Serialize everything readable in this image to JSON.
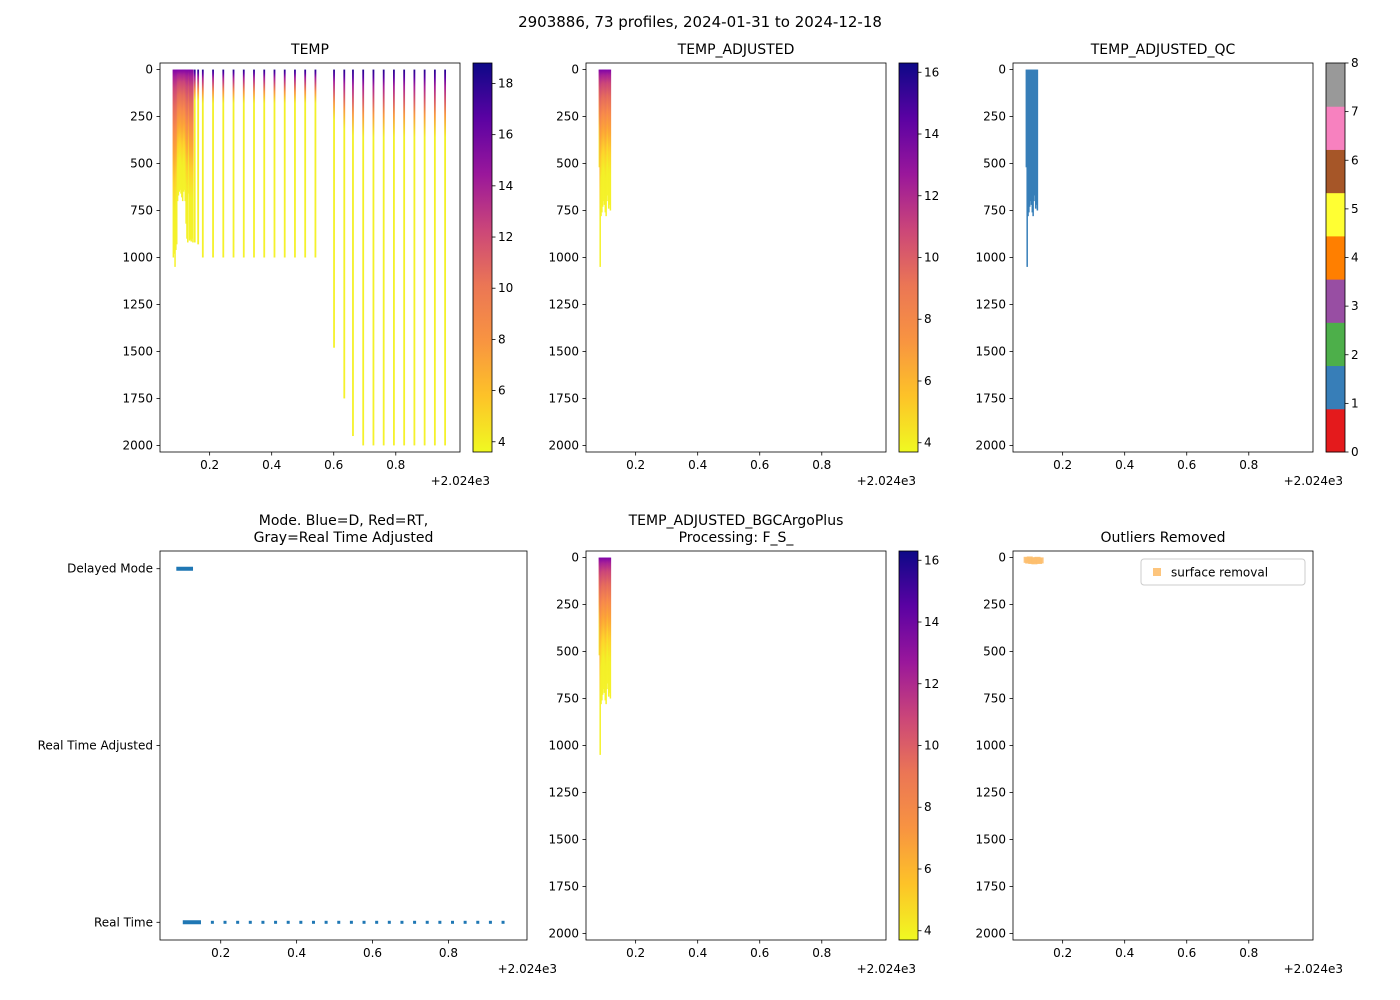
{
  "figure": {
    "suptitle": "2903886, 73 profiles, 2024-01-31 to 2024-12-18",
    "background": "#ffffff"
  },
  "palette": {
    "plasma_r_top_to_bottom": [
      "#0d0887",
      "#5b02a3",
      "#9a179b",
      "#cb4679",
      "#eb7655",
      "#f89441",
      "#fdc328",
      "#f0f921"
    ],
    "set1_qc_0_to_8": [
      "#e41a1c",
      "#377eb8",
      "#4daf4a",
      "#984ea3",
      "#ff7f00",
      "#ffff33",
      "#a65628",
      "#f781bf",
      "#999999"
    ],
    "mode_blue": "#1f77b4",
    "outlier_orange": "#fdbf6f",
    "qc_data_blue": "#377eb8",
    "axis_color": "#000000",
    "profile_gradient_cluster": [
      [
        0,
        "#7e03a8"
      ],
      [
        0.04,
        "#a82296"
      ],
      [
        0.1,
        "#cb4679"
      ],
      [
        0.2,
        "#e56b5d"
      ],
      [
        0.32,
        "#f7894b"
      ],
      [
        0.45,
        "#fca636"
      ],
      [
        0.6,
        "#fdd32b"
      ],
      [
        0.75,
        "#f3f027"
      ],
      [
        1,
        "#f5f22b"
      ]
    ],
    "profile_gradient_sparse": [
      [
        0,
        "#21058f"
      ],
      [
        0.02,
        "#5601a4"
      ],
      [
        0.045,
        "#a62098"
      ],
      [
        0.08,
        "#d5546c"
      ],
      [
        0.12,
        "#f9973f"
      ],
      [
        0.18,
        "#f3f027"
      ],
      [
        1,
        "#f5f22b"
      ]
    ]
  },
  "chart_data": [
    {
      "id": "temp",
      "type": "scatter",
      "title": "TEMP",
      "x_ticks": [
        0.2,
        0.4,
        0.6,
        0.8
      ],
      "x_offset": "+2.024e3",
      "xlim": [
        0.04,
        1.007
      ],
      "y_ticks": [
        0,
        250,
        500,
        750,
        1000,
        1250,
        1500,
        1750,
        2000
      ],
      "ylim": [
        -35,
        2035
      ],
      "y_inverted": true,
      "ylabel_unit": "depth",
      "colorbar": {
        "cmap": "plasma_r",
        "vmin": 3.6,
        "vmax": 18.8,
        "ticks": [
          4,
          6,
          8,
          10,
          12,
          14,
          16,
          18
        ]
      },
      "cluster_profiles": {
        "x_start": 0.083,
        "x_step": 0.00274,
        "depths": [
          1000,
          980,
          1050,
          960,
          930,
          700,
          670,
          650,
          640,
          660,
          680,
          700,
          650,
          640,
          700,
          820,
          900,
          920,
          660,
          910,
          905,
          915,
          900,
          920
        ]
      },
      "profiles": [
        [
          0.152,
          920
        ],
        [
          0.163,
          930
        ],
        [
          0.178,
          1000
        ],
        [
          0.211,
          1000
        ],
        [
          0.244,
          1000
        ],
        [
          0.277,
          1000
        ],
        [
          0.31,
          1000
        ],
        [
          0.343,
          1000
        ],
        [
          0.376,
          1000
        ],
        [
          0.409,
          1000
        ],
        [
          0.442,
          1000
        ],
        [
          0.475,
          1000
        ],
        [
          0.508,
          1000
        ],
        [
          0.541,
          1000
        ],
        [
          0.601,
          1480
        ],
        [
          0.634,
          1750
        ],
        [
          0.662,
          1950
        ],
        [
          0.695,
          2000
        ],
        [
          0.728,
          2000
        ],
        [
          0.761,
          2000
        ],
        [
          0.794,
          2000
        ],
        [
          0.827,
          2000
        ],
        [
          0.86,
          2000
        ],
        [
          0.893,
          2000
        ],
        [
          0.926,
          2000
        ],
        [
          0.959,
          2000
        ]
      ]
    },
    {
      "id": "temp_adjusted",
      "type": "scatter",
      "title": "TEMP_ADJUSTED",
      "x_ticks": [
        0.2,
        0.4,
        0.6,
        0.8
      ],
      "x_offset": "+2.024e3",
      "xlim": [
        0.04,
        1.007
      ],
      "y_ticks": [
        0,
        250,
        500,
        750,
        1000,
        1250,
        1500,
        1750,
        2000
      ],
      "ylim": [
        -35,
        2035
      ],
      "y_inverted": true,
      "colorbar": {
        "cmap": "plasma_r",
        "vmin": 3.7,
        "vmax": 16.3,
        "ticks": [
          4,
          6,
          8,
          10,
          12,
          14,
          16
        ]
      },
      "cluster_profiles": {
        "x_start": 0.083,
        "x_step": 0.00274,
        "depths": [
          520,
          1050,
          780,
          760,
          730,
          700,
          720,
          760,
          780,
          700,
          670,
          740,
          720,
          750
        ]
      },
      "profiles": []
    },
    {
      "id": "temp_adjusted_qc",
      "type": "scatter",
      "title": "TEMP_ADJUSTED_QC",
      "x_ticks": [
        0.2,
        0.4,
        0.6,
        0.8
      ],
      "x_offset": "+2.024e3",
      "xlim": [
        0.04,
        1.007
      ],
      "y_ticks": [
        0,
        250,
        500,
        750,
        1000,
        1250,
        1500,
        1750,
        2000
      ],
      "ylim": [
        -35,
        2035
      ],
      "y_inverted": true,
      "color": "#377eb8",
      "qc_value_shown": 1,
      "colorbar": {
        "cmap": "set1",
        "vmin": 0,
        "vmax": 8,
        "ticks": [
          0,
          1,
          2,
          3,
          4,
          5,
          6,
          7,
          8
        ]
      },
      "cluster_profiles": {
        "x_start": 0.083,
        "x_step": 0.00274,
        "depths": [
          520,
          1050,
          780,
          760,
          730,
          700,
          720,
          760,
          780,
          700,
          670,
          740,
          720,
          750
        ]
      },
      "profiles": []
    },
    {
      "id": "mode",
      "type": "status-timeline",
      "title_lines": [
        "Mode. Blue=D, Red=RT,",
        "Gray=Real Time Adjusted"
      ],
      "x_ticks": [
        0.2,
        0.4,
        0.6,
        0.8
      ],
      "x_offset": "+2.024e3",
      "xlim": [
        0.04,
        1.007
      ],
      "categories": [
        "Delayed Mode",
        "Real Time Adjusted",
        "Real Time"
      ],
      "delayed_mode_segment": [
        0.083,
        0.127
      ],
      "real_time_solid_segment": [
        0.1,
        0.148
      ],
      "real_time_dots_x_start": 0.178,
      "real_time_dots_x_step": 0.0333,
      "real_time_dots_count": 24
    },
    {
      "id": "bgc",
      "type": "scatter",
      "title_lines": [
        "TEMP_ADJUSTED_BGCArgoPlus",
        "Processing: F_S_"
      ],
      "x_ticks": [
        0.2,
        0.4,
        0.6,
        0.8
      ],
      "x_offset": "+2.024e3",
      "xlim": [
        0.04,
        1.007
      ],
      "y_ticks": [
        0,
        250,
        500,
        750,
        1000,
        1250,
        1500,
        1750,
        2000
      ],
      "ylim": [
        -35,
        2035
      ],
      "y_inverted": true,
      "colorbar": {
        "cmap": "plasma_r",
        "vmin": 3.7,
        "vmax": 16.3,
        "ticks": [
          4,
          6,
          8,
          10,
          12,
          14,
          16
        ]
      },
      "cluster_profiles": {
        "x_start": 0.083,
        "x_step": 0.00274,
        "depths": [
          520,
          1050,
          780,
          760,
          730,
          700,
          720,
          760,
          780,
          700,
          670,
          740,
          720,
          750
        ]
      },
      "profiles": []
    },
    {
      "id": "outliers",
      "type": "scatter",
      "title": "Outliers Removed",
      "x_ticks": [
        0.2,
        0.4,
        0.6,
        0.8
      ],
      "x_offset": "+2.024e3",
      "xlim": [
        0.04,
        1.007
      ],
      "y_ticks": [
        0,
        250,
        500,
        750,
        1000,
        1250,
        1500,
        1750,
        2000
      ],
      "ylim": [
        -35,
        2035
      ],
      "y_inverted": true,
      "legend": {
        "label": "surface removal"
      },
      "points": [
        [
          0.084,
          12
        ],
        [
          0.089,
          16
        ],
        [
          0.094,
          10
        ],
        [
          0.099,
          18
        ],
        [
          0.104,
          14
        ],
        [
          0.109,
          20
        ],
        [
          0.114,
          15
        ],
        [
          0.119,
          12
        ],
        [
          0.124,
          18
        ],
        [
          0.129,
          15
        ]
      ]
    }
  ]
}
